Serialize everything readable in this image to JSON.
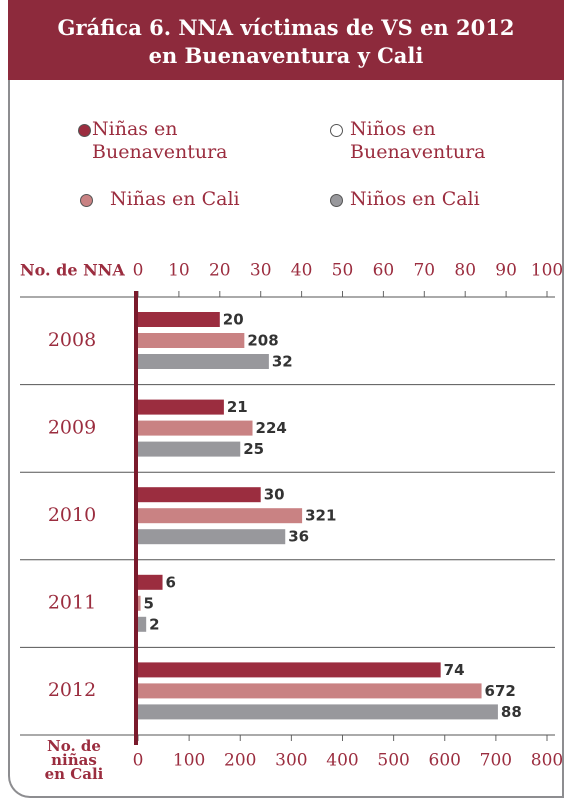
{
  "chart_data": {
    "type": "hbar",
    "title": [
      "Gráfica 6.  NNA víctimas de VS en 2012",
      "en Buenaventura y Cali"
    ],
    "categories": [
      "2008",
      "2009",
      "2010",
      "2011",
      "2012"
    ],
    "series": [
      {
        "name": "Niñas en Buenaventura",
        "color": "#9b2d3f",
        "values": [
          20,
          21,
          30,
          6,
          74
        ]
      },
      {
        "name": "Niños en Buenaventura",
        "color": "#ffffff",
        "values": [
          null,
          null,
          null,
          null,
          null
        ]
      },
      {
        "name": "Niñas en Cali",
        "color": "#c98283",
        "axis": "x2",
        "values": [
          208,
          224,
          321,
          5,
          672
        ]
      },
      {
        "name": "Niños en Cali",
        "color": "#98989c",
        "values": [
          32,
          25,
          36,
          2,
          88
        ]
      }
    ],
    "xlabel": "No. de NNA",
    "x2label": [
      "No. de",
      "niñas",
      "en Cali"
    ],
    "xlim": [
      0,
      100
    ],
    "xticks": [
      0,
      10,
      20,
      30,
      40,
      50,
      60,
      70,
      80,
      90,
      100
    ],
    "x2lim": [
      0,
      800
    ],
    "x2ticks": [
      0,
      100,
      200,
      300,
      400,
      500,
      600,
      700,
      800
    ]
  }
}
